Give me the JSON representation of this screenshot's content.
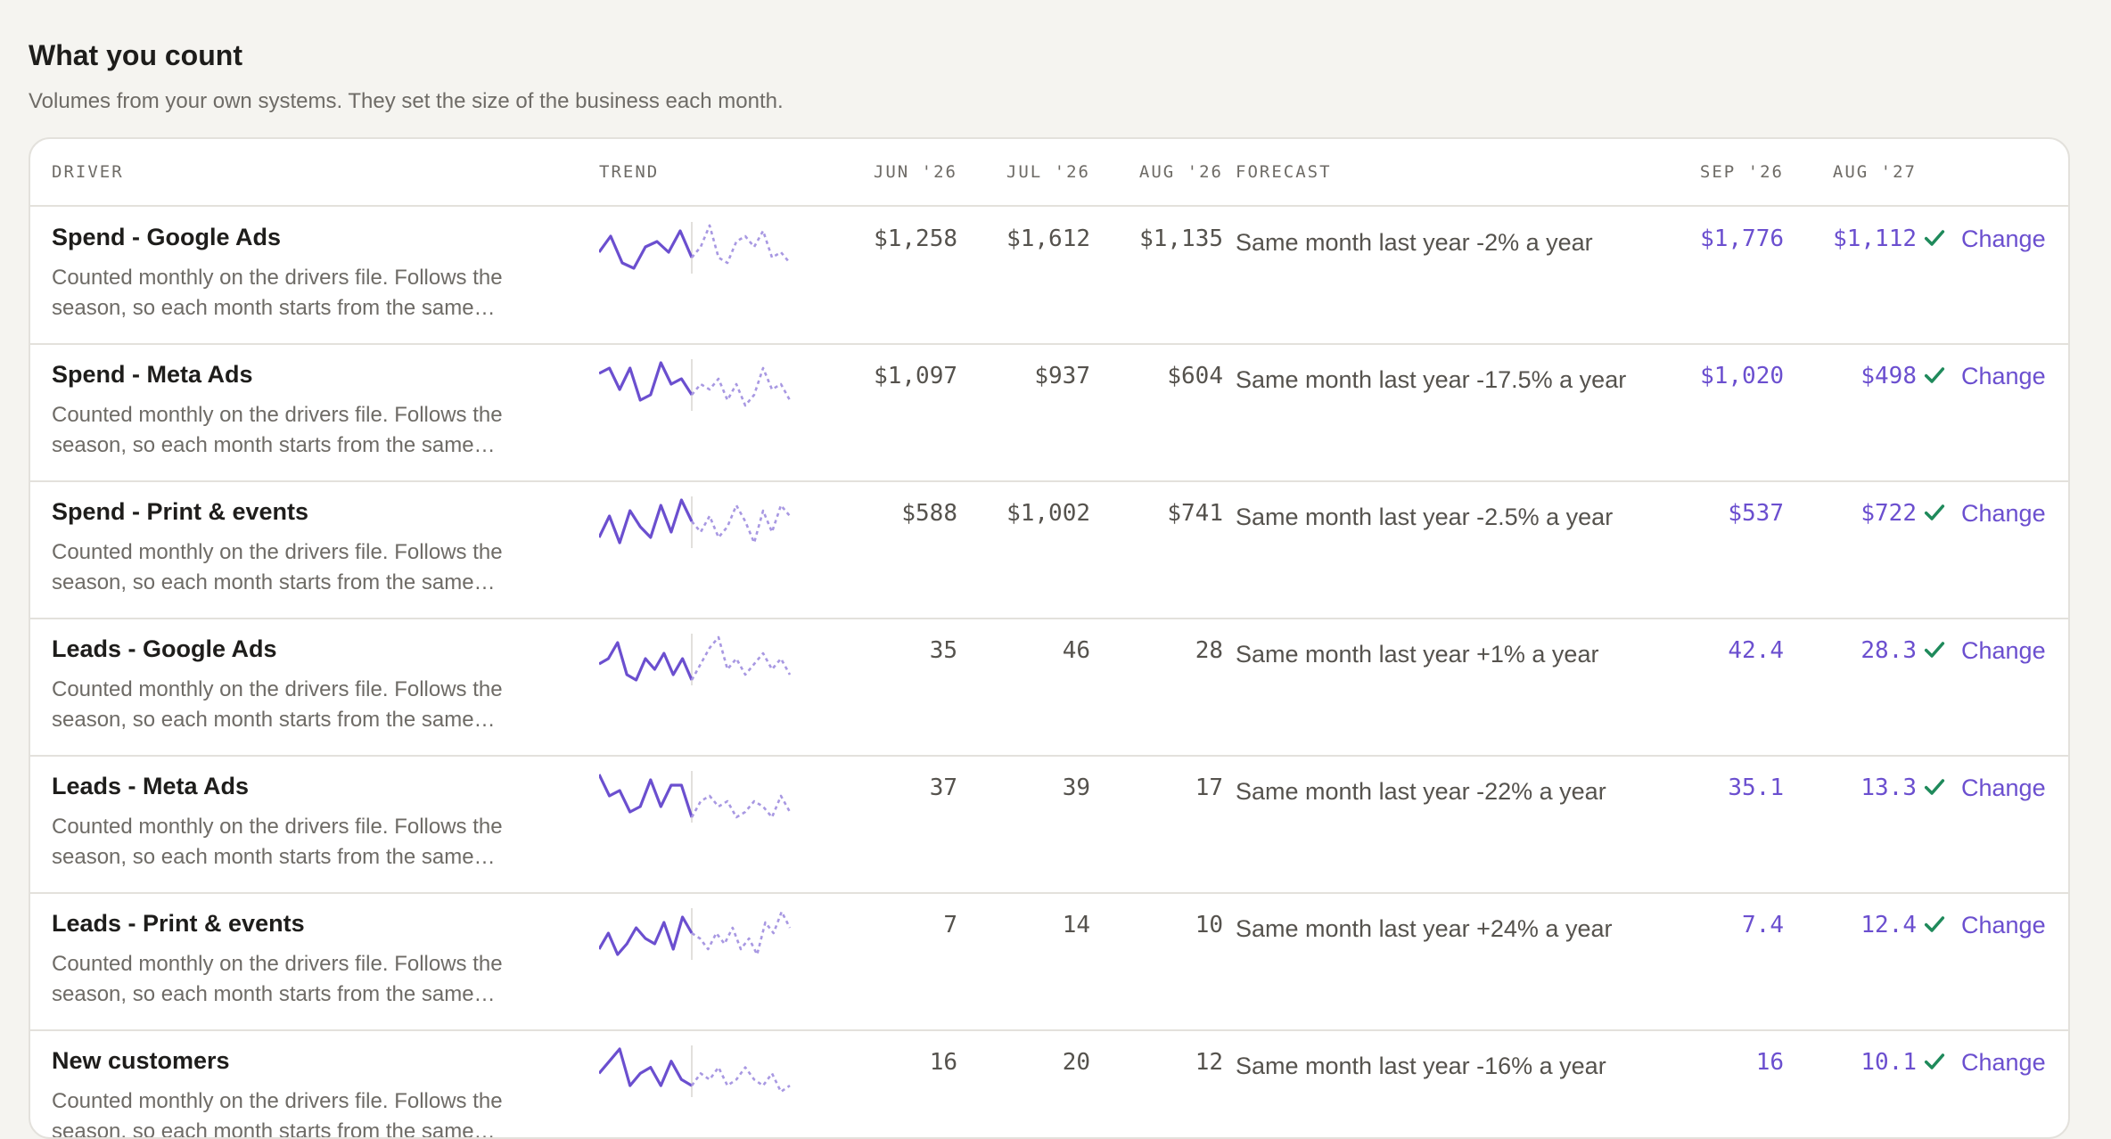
{
  "section": {
    "title": "What you count",
    "subtitle": "Volumes from your own systems. They set the size of the business each month."
  },
  "columns": {
    "driver": "DRIVER",
    "trend": "TREND",
    "jun26": "JUN '26",
    "jul26": "JUL '26",
    "aug26": "AUG '26",
    "forecast": "FORECAST",
    "sep26": "SEP '26",
    "aug27": "AUG '27"
  },
  "colors": {
    "accent": "#6b4fcf",
    "check": "#1f8a5b",
    "muted": "#6e6b66"
  },
  "rows": [
    {
      "name": "Spend - Google Ads",
      "desc": "Counted monthly on the drivers file. Follows the season, so each month starts from the same…",
      "jun": "$1,258",
      "jul": "$1,612",
      "aug": "$1,135",
      "forecast": "Same month last year -2% a year",
      "sep": "$1,776",
      "aug27": "$1,112",
      "action": "Change",
      "trend": {
        "actual": [
          5,
          8,
          3,
          2,
          6,
          7,
          5,
          9,
          4
        ],
        "forecast": [
          6,
          10,
          4,
          3,
          7,
          8,
          6,
          9,
          4,
          5,
          3
        ]
      }
    },
    {
      "name": "Spend - Meta Ads",
      "desc": "Counted monthly on the drivers file. Follows the season, so each month starts from the same…",
      "jun": "$1,097",
      "jul": "$937",
      "aug": "$604",
      "forecast": "Same month last year -17.5% a year",
      "sep": "$1,020",
      "aug27": "$498",
      "action": "Change",
      "trend": {
        "actual": [
          8,
          9,
          5,
          9,
          3,
          4,
          10,
          6,
          7,
          4
        ],
        "forecast": [
          6,
          5,
          7,
          3,
          6,
          2,
          4,
          9,
          5,
          6,
          3
        ]
      }
    },
    {
      "name": "Spend - Print & events",
      "desc": "Counted monthly on the drivers file. Follows the season, so each month starts from the same…",
      "jun": "$588",
      "jul": "$1,002",
      "aug": "$741",
      "forecast": "Same month last year -2.5% a year",
      "sep": "$537",
      "aug27": "$722",
      "action": "Change",
      "trend": {
        "actual": [
          3,
          7,
          2,
          8,
          5,
          3,
          9,
          4,
          10,
          6
        ],
        "forecast": [
          4,
          7,
          3,
          5,
          9,
          6,
          2,
          8,
          4,
          9,
          7
        ]
      }
    },
    {
      "name": "Leads - Google Ads",
      "desc": "Counted monthly on the drivers file. Follows the season, so each month starts from the same…",
      "jun": "35",
      "jul": "46",
      "aug": "28",
      "forecast": "Same month last year +1% a year",
      "sep": "42.4",
      "aug27": "28.3",
      "action": "Change",
      "trend": {
        "actual": [
          5,
          6,
          9,
          3,
          2,
          6,
          4,
          7,
          3,
          6,
          2
        ],
        "forecast": [
          5,
          8,
          10,
          4,
          6,
          3,
          5,
          7,
          4,
          6,
          3
        ]
      }
    },
    {
      "name": "Leads - Meta Ads",
      "desc": "Counted monthly on the drivers file. Follows the season, so each month starts from the same…",
      "jun": "37",
      "jul": "39",
      "aug": "17",
      "forecast": "Same month last year -22% a year",
      "sep": "35.1",
      "aug27": "13.3",
      "action": "Change",
      "trend": {
        "actual": [
          10,
          6,
          7,
          3,
          4,
          9,
          4,
          8,
          8,
          2
        ],
        "forecast": [
          5,
          6,
          4,
          5,
          2,
          3,
          5,
          4,
          2,
          6,
          3
        ]
      }
    },
    {
      "name": "Leads - Print & events",
      "desc": "Counted monthly on the drivers file. Follows the season, so each month starts from the same…",
      "jun": "7",
      "jul": "14",
      "aug": "10",
      "forecast": "Same month last year +24% a year",
      "sep": "7.4",
      "aug27": "12.4",
      "action": "Change",
      "trend": {
        "actual": [
          3,
          6,
          2,
          4,
          7,
          5,
          4,
          8,
          3,
          9,
          6
        ],
        "forecast": [
          5,
          3,
          6,
          4,
          7,
          3,
          5,
          2,
          8,
          6,
          10,
          7
        ]
      }
    },
    {
      "name": "New customers",
      "desc": "Counted monthly on the drivers file. Follows the season, so each month starts from the same…",
      "jun": "16",
      "jul": "20",
      "aug": "12",
      "forecast": "Same month last year -16% a year",
      "sep": "16",
      "aug27": "10.1",
      "action": "Change",
      "trend": {
        "actual": [
          5,
          7,
          9,
          3,
          5,
          6,
          3,
          7,
          4,
          3
        ],
        "forecast": [
          5,
          4,
          6,
          3,
          4,
          6,
          4,
          3,
          5,
          2,
          3
        ]
      }
    }
  ]
}
